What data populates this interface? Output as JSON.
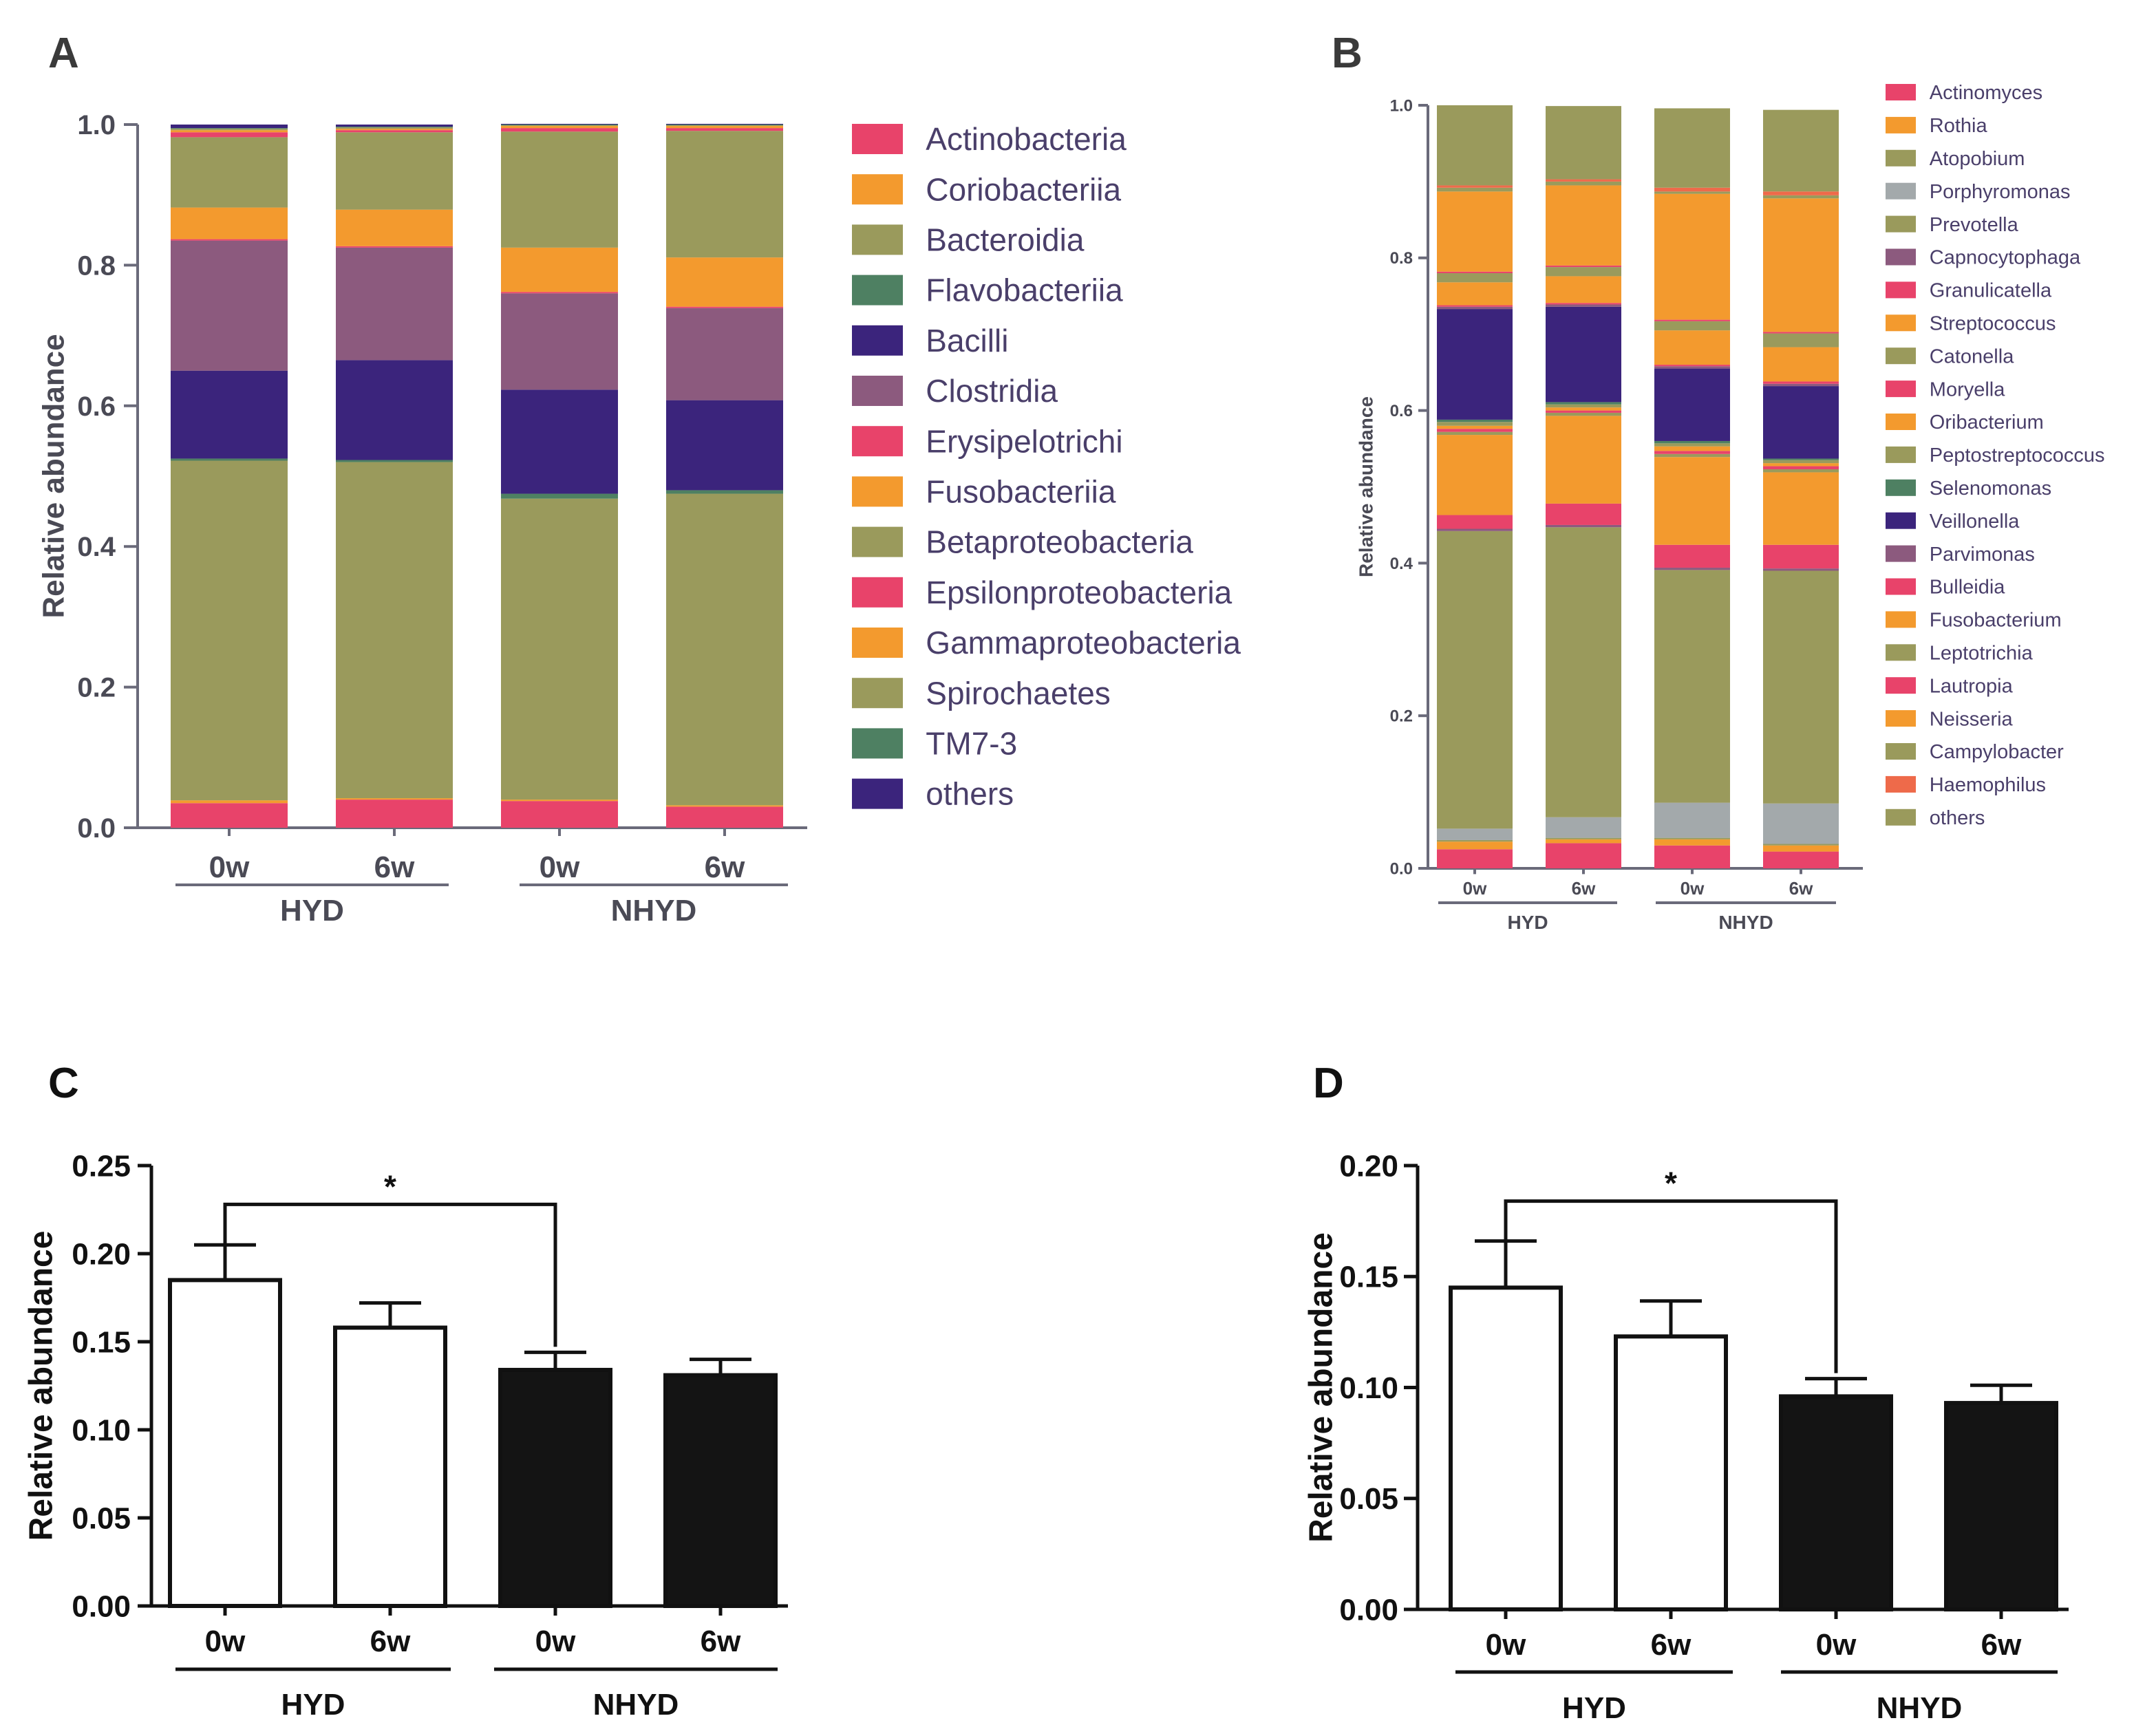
{
  "panels": [
    "A",
    "B",
    "C",
    "D"
  ],
  "chart_data": [
    {
      "id": "A",
      "type": "stacked-bar",
      "ylabel": "Relative abundance",
      "ylim": [
        0,
        1.0
      ],
      "yticks": [
        "0.0",
        "0.2",
        "0.4",
        "0.6",
        "0.8",
        "1.0"
      ],
      "categories": [
        "0w",
        "6w",
        "0w",
        "6w"
      ],
      "groups": [
        {
          "label": "HYD",
          "span": [
            0,
            1
          ]
        },
        {
          "label": "NHYD",
          "span": [
            2,
            3
          ]
        }
      ],
      "series": [
        {
          "name": "Actinobacteria",
          "color": "#e8436a",
          "values": [
            0.035,
            0.04,
            0.038,
            0.03
          ]
        },
        {
          "name": "Coriobacteriia",
          "color": "#f39a2e",
          "values": [
            0.004,
            0.002,
            0.002,
            0.002
          ]
        },
        {
          "name": "Bacteroidia",
          "color": "#9a9a5c",
          "values": [
            0.483,
            0.478,
            0.428,
            0.443
          ]
        },
        {
          "name": "Flavobacteriia",
          "color": "#4e8062",
          "values": [
            0.003,
            0.003,
            0.007,
            0.005
          ]
        },
        {
          "name": "Bacilli",
          "color": "#3b247c",
          "values": [
            0.125,
            0.142,
            0.148,
            0.128
          ]
        },
        {
          "name": "Clostridia",
          "color": "#8c5a7e",
          "values": [
            0.185,
            0.16,
            0.137,
            0.131
          ]
        },
        {
          "name": "Erysipelotrichi",
          "color": "#e8436a",
          "values": [
            0.002,
            0.002,
            0.002,
            0.002
          ]
        },
        {
          "name": "Fusobacteriia",
          "color": "#f39a2e",
          "values": [
            0.045,
            0.052,
            0.063,
            0.07
          ]
        },
        {
          "name": "Betaproteobacteria",
          "color": "#9a9a5c",
          "values": [
            0.1,
            0.11,
            0.165,
            0.18
          ]
        },
        {
          "name": "Epsilonproteobacteria",
          "color": "#e8436a",
          "values": [
            0.007,
            0.003,
            0.005,
            0.004
          ]
        },
        {
          "name": "Gammaproteobacteria",
          "color": "#f39a2e",
          "values": [
            0.003,
            0.002,
            0.003,
            0.003
          ]
        },
        {
          "name": "Spirochaetes",
          "color": "#9a9a5c",
          "values": [
            0.002,
            0.002,
            0.001,
            0.001
          ]
        },
        {
          "name": "TM7-3",
          "color": "#4e8062",
          "values": [
            0.001,
            0.001,
            0.001,
            0.001
          ]
        },
        {
          "name": "others",
          "color": "#3b247c",
          "values": [
            0.005,
            0.003,
            0.001,
            0.001
          ]
        }
      ]
    },
    {
      "id": "B",
      "type": "stacked-bar",
      "ylabel": "Relative abundance",
      "ylim": [
        0,
        1.0
      ],
      "yticks": [
        "0.0",
        "0.2",
        "0.4",
        "0.6",
        "0.8",
        "1.0"
      ],
      "categories": [
        "0w",
        "6w",
        "0w",
        "6w"
      ],
      "groups": [
        {
          "label": "HYD",
          "span": [
            0,
            1
          ]
        },
        {
          "label": "NHYD",
          "span": [
            2,
            3
          ]
        }
      ],
      "series": [
        {
          "name": "Actinomyces",
          "color": "#e8436a",
          "values": [
            0.025,
            0.033,
            0.03,
            0.022
          ]
        },
        {
          "name": "Rothia",
          "color": "#f39a2e",
          "values": [
            0.01,
            0.005,
            0.008,
            0.008
          ]
        },
        {
          "name": "Atopobium",
          "color": "#9a9a5c",
          "values": [
            0.002,
            0.002,
            0.002,
            0.002
          ]
        },
        {
          "name": "Porphyromonas",
          "color": "#a3a9ab",
          "values": [
            0.015,
            0.027,
            0.046,
            0.053
          ]
        },
        {
          "name": "Prevotella",
          "color": "#9a9a5c",
          "values": [
            0.39,
            0.38,
            0.305,
            0.305
          ]
        },
        {
          "name": "Capnocytophaga",
          "color": "#8c5a7e",
          "values": [
            0.003,
            0.003,
            0.003,
            0.003
          ]
        },
        {
          "name": "Granulicatella",
          "color": "#e8436a",
          "values": [
            0.018,
            0.028,
            0.03,
            0.031
          ]
        },
        {
          "name": "Streptococcus",
          "color": "#f39a2e",
          "values": [
            0.105,
            0.115,
            0.115,
            0.095
          ]
        },
        {
          "name": "Catonella",
          "color": "#9a9a5c",
          "values": [
            0.004,
            0.004,
            0.004,
            0.004
          ]
        },
        {
          "name": "Moryella",
          "color": "#e8436a",
          "values": [
            0.004,
            0.003,
            0.004,
            0.004
          ]
        },
        {
          "name": "Oribacterium",
          "color": "#f39a2e",
          "values": [
            0.004,
            0.004,
            0.006,
            0.004
          ]
        },
        {
          "name": "Peptostreptococcus",
          "color": "#9a9a5c",
          "values": [
            0.005,
            0.004,
            0.004,
            0.004
          ]
        },
        {
          "name": "Selenomonas",
          "color": "#4e8062",
          "values": [
            0.003,
            0.003,
            0.003,
            0.002
          ]
        },
        {
          "name": "Veillonella",
          "color": "#3b247c",
          "values": [
            0.145,
            0.125,
            0.095,
            0.095
          ]
        },
        {
          "name": "Parvimonas",
          "color": "#8c5a7e",
          "values": [
            0.003,
            0.003,
            0.003,
            0.003
          ]
        },
        {
          "name": "Bulleidia",
          "color": "#e8436a",
          "values": [
            0.002,
            0.002,
            0.002,
            0.003
          ]
        },
        {
          "name": "Fusobacterium",
          "color": "#f39a2e",
          "values": [
            0.03,
            0.035,
            0.045,
            0.045
          ]
        },
        {
          "name": "Leptotrichia",
          "color": "#9a9a5c",
          "values": [
            0.012,
            0.012,
            0.012,
            0.018
          ]
        },
        {
          "name": "Lautropia",
          "color": "#e8436a",
          "values": [
            0.002,
            0.002,
            0.002,
            0.002
          ]
        },
        {
          "name": "Neisseria",
          "color": "#f39a2e",
          "values": [
            0.105,
            0.105,
            0.165,
            0.175
          ]
        },
        {
          "name": "Campylobacter",
          "color": "#9a9a5c",
          "values": [
            0.005,
            0.005,
            0.003,
            0.004
          ]
        },
        {
          "name": "Haemophilus",
          "color": "#ee6a4a",
          "values": [
            0.003,
            0.003,
            0.005,
            0.005
          ]
        },
        {
          "name": "others",
          "color": "#9a9a5c",
          "values": [
            0.105,
            0.096,
            0.104,
            0.107
          ]
        }
      ]
    },
    {
      "id": "C",
      "type": "bar",
      "ylabel": "Relative abundance",
      "ylim": [
        0,
        0.25
      ],
      "yticks": [
        "0.00",
        "0.05",
        "0.10",
        "0.15",
        "0.20",
        "0.25"
      ],
      "categories": [
        "0w",
        "6w",
        "0w",
        "6w"
      ],
      "groups": [
        {
          "label": "HYD",
          "span": [
            0,
            1
          ]
        },
        {
          "label": "NHYD",
          "span": [
            2,
            3
          ]
        }
      ],
      "values": [
        0.185,
        0.158,
        0.134,
        0.131
      ],
      "errors": [
        0.02,
        0.014,
        0.01,
        0.009
      ],
      "fills": [
        "#ffffff",
        "#ffffff",
        "#141414",
        "#141414"
      ],
      "significance": {
        "from": 0,
        "to": 2,
        "label": "*",
        "level": 0.228
      }
    },
    {
      "id": "D",
      "type": "bar",
      "ylabel": "Relative abundance",
      "ylim": [
        0,
        0.2
      ],
      "yticks": [
        "0.00",
        "0.05",
        "0.10",
        "0.15",
        "0.20"
      ],
      "categories": [
        "0w",
        "6w",
        "0w",
        "6w"
      ],
      "groups": [
        {
          "label": "HYD",
          "span": [
            0,
            1
          ]
        },
        {
          "label": "NHYD",
          "span": [
            2,
            3
          ]
        }
      ],
      "values": [
        0.145,
        0.123,
        0.096,
        0.093
      ],
      "errors": [
        0.021,
        0.016,
        0.008,
        0.008
      ],
      "fills": [
        "#ffffff",
        "#ffffff",
        "#141414",
        "#141414"
      ],
      "significance": {
        "from": 0,
        "to": 2,
        "label": "*",
        "level": 0.184
      }
    }
  ]
}
